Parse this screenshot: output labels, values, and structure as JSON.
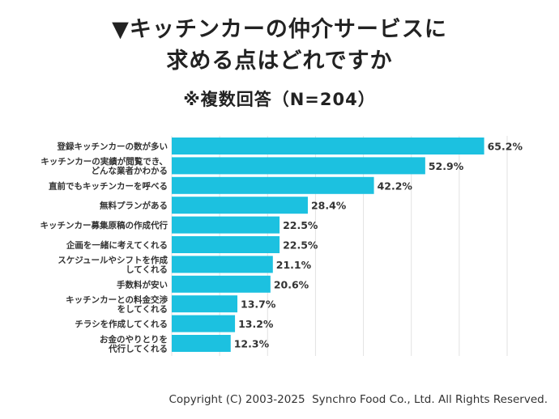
{
  "chart_data": {
    "type": "bar",
    "orientation": "horizontal",
    "title_lines": [
      "▼キッチンカーの仲介サービスに",
      "求める点はどれですか"
    ],
    "subtitle": "※複数回答（N=204）",
    "categories": [
      [
        "登録キッチンカーの数が多い"
      ],
      [
        "キッチンカーの実績が閲覧でき、",
        "どんな業者かわかる"
      ],
      [
        "直前でもキッチンカーを呼べる"
      ],
      [
        "無料プランがある"
      ],
      [
        "キッチンカー募集原稿の作成代行"
      ],
      [
        "企画を一緒に考えてくれる"
      ],
      [
        "スケジュールやシフトを作成",
        "してくれる"
      ],
      [
        "手数料が安い"
      ],
      [
        "キッチンカーとの料金交渉",
        "をしてくれる"
      ],
      [
        "チラシを作成してくれる"
      ],
      [
        "お金のやりとりを",
        "代行してくれる"
      ]
    ],
    "values": [
      65.2,
      52.9,
      42.2,
      28.4,
      22.5,
      22.5,
      21.1,
      20.6,
      13.7,
      13.2,
      12.3
    ],
    "value_labels": [
      "65.2%",
      "52.9%",
      "42.2%",
      "28.4%",
      "22.5%",
      "22.5%",
      "21.1%",
      "20.6%",
      "13.7%",
      "13.2%",
      "12.3%"
    ],
    "xlim": [
      0,
      70
    ],
    "grid": true,
    "bar_color": "#1cc1e0",
    "grid_color": "#e2e2e2"
  },
  "footer": "Copyright (C) 2003-2025  Synchro Food Co., Ltd. All Rights Reserved."
}
